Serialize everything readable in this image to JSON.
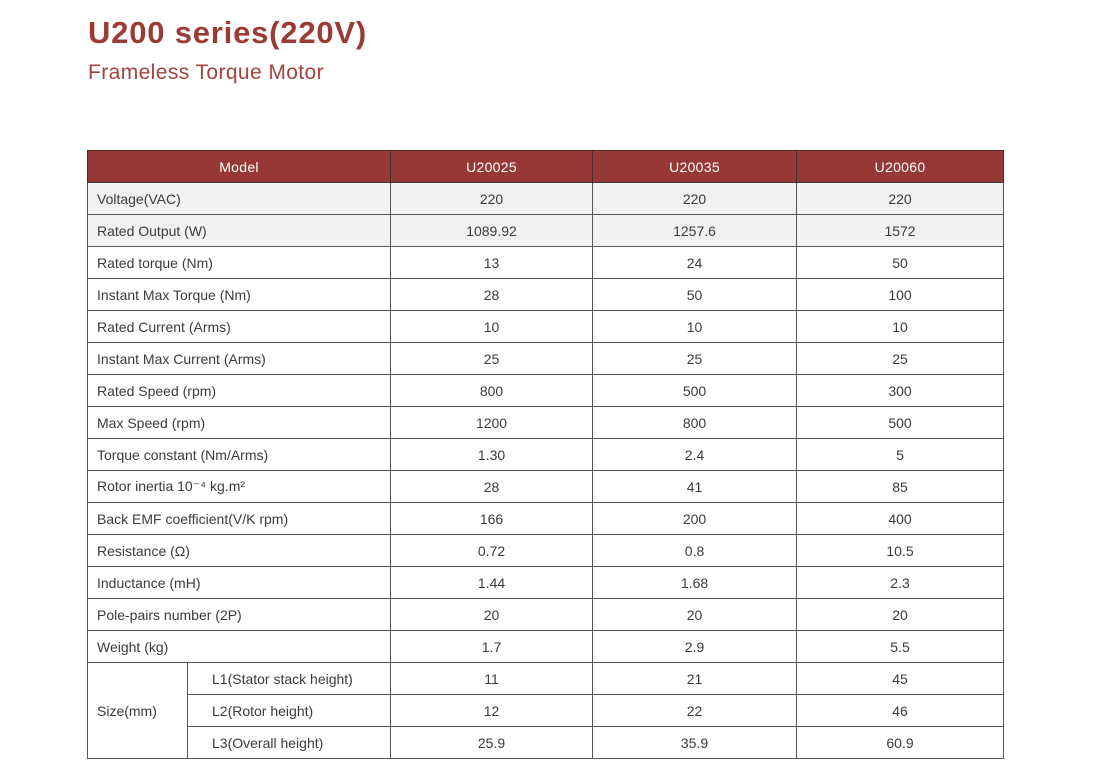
{
  "page": {
    "title": "U200 series(220V)",
    "subtitle": "Frameless Torque Motor"
  },
  "colors": {
    "header_background": "#963836",
    "title_red": "#9c3a34",
    "subtitle_red": "#a2443c",
    "alt_row_background": "#f1f1f2",
    "border_gray": "#565656"
  },
  "table": {
    "header": {
      "model_label": "Model",
      "columns": [
        "U20025",
        "U20035",
        "U20060"
      ]
    },
    "rows": [
      {
        "label": "Voltage(VAC)",
        "values": [
          "220",
          "220",
          "220"
        ]
      },
      {
        "label": "Rated Output (W)",
        "values": [
          "1089.92",
          "1257.6",
          "1572"
        ]
      },
      {
        "label": "Rated torque (Nm)",
        "values": [
          "13",
          "24",
          "50"
        ]
      },
      {
        "label": "Instant Max Torque (Nm)",
        "values": [
          "28",
          "50",
          "100"
        ]
      },
      {
        "label": "Rated Current (Arms)",
        "values": [
          "10",
          "10",
          "10"
        ]
      },
      {
        "label": "Instant Max Current (Arms)",
        "values": [
          "25",
          "25",
          "25"
        ]
      },
      {
        "label": "Rated Speed (rpm)",
        "values": [
          "800",
          "500",
          "300"
        ]
      },
      {
        "label": "Max  Speed (rpm)",
        "values": [
          "1200",
          "800",
          "500"
        ]
      },
      {
        "label": "Torque constant (Nm/Arms)",
        "values": [
          "1.30",
          "2.4",
          "5"
        ]
      },
      {
        "label": "Rotor inertia 10⁻⁴ kg.m²",
        "values": [
          "28",
          "41",
          "85"
        ]
      },
      {
        "label": "Back EMF coefficient(V/K rpm)",
        "values": [
          "166",
          "200",
          "400"
        ]
      },
      {
        "label": "Resistance (Ω)",
        "values": [
          "0.72",
          "0.8",
          "10.5"
        ]
      },
      {
        "label": "Inductance (mH)",
        "values": [
          "1.44",
          "1.68",
          "2.3"
        ]
      },
      {
        "label": "Pole-pairs number (2P)",
        "values": [
          "20",
          "20",
          "20"
        ]
      },
      {
        "label": "Weight (kg)",
        "values": [
          "1.7",
          "2.9",
          "5.5"
        ]
      }
    ],
    "size_group": {
      "label": "Size(mm)",
      "rows": [
        {
          "label": "L1(Stator stack height)",
          "values": [
            "11",
            "21",
            "45"
          ]
        },
        {
          "label": "L2(Rotor height)",
          "values": [
            "12",
            "22",
            "46"
          ]
        },
        {
          "label": "L3(Overall height)",
          "values": [
            "25.9",
            "35.9",
            "60.9"
          ]
        }
      ]
    }
  }
}
